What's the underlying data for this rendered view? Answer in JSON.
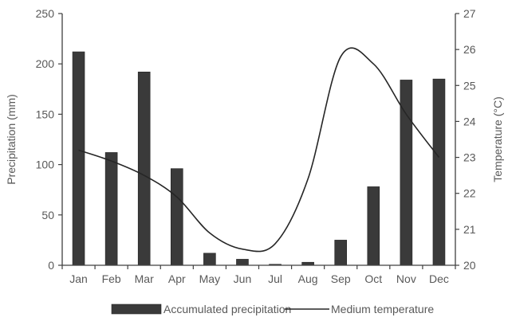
{
  "chart_data": {
    "type": "bar",
    "categories": [
      "Jan",
      "Feb",
      "Mar",
      "Apr",
      "May",
      "Jun",
      "Jul",
      "Aug",
      "Sep",
      "Oct",
      "Nov",
      "Dec"
    ],
    "series": [
      {
        "name": "Accumulated precipitation",
        "type": "bar",
        "axis": "left",
        "values": [
          212,
          112,
          192,
          96,
          12,
          6,
          1,
          3,
          25,
          78,
          184,
          185
        ]
      },
      {
        "name": "Medium temperature",
        "type": "line",
        "axis": "right",
        "smooth": true,
        "values": [
          23.2,
          22.9,
          22.5,
          21.9,
          20.9,
          20.45,
          20.6,
          22.4,
          25.8,
          25.6,
          24.2,
          23.0
        ]
      }
    ],
    "ylabel": "Precipitation (mm)",
    "ylim": [
      0,
      250
    ],
    "yticks": [
      0,
      50,
      100,
      150,
      200,
      250
    ],
    "y2label": "Temperature (°C)",
    "y2lim": [
      20,
      27
    ],
    "y2ticks": [
      20,
      21,
      22,
      23,
      24,
      25,
      26,
      27
    ],
    "grid": false,
    "legend_position": "bottom",
    "colors": {
      "bar": "#3a3a3a",
      "line": "#262626",
      "axis": "#404040",
      "text": "#595959"
    }
  }
}
